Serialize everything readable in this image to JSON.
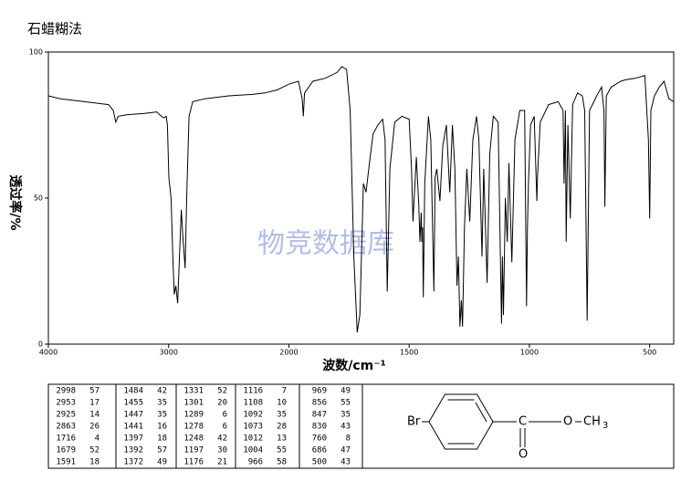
{
  "chart_data": {
    "type": "line",
    "title": "石蜡糊法",
    "ylabel": "透过率/%",
    "xlabel": "波数/cm⁻¹",
    "watermark": "物竞数据库",
    "color": "#000000",
    "xlim": [
      4000,
      400
    ],
    "xscale_break": 2000,
    "xticks": [
      4000,
      3000,
      2000,
      1500,
      1000,
      500
    ],
    "ylim": [
      0,
      100
    ],
    "yticks": [
      0,
      50,
      100
    ],
    "x": [
      4000,
      3900,
      3800,
      3700,
      3600,
      3500,
      3460,
      3440,
      3420,
      3350,
      3200,
      3100,
      3060,
      3040,
      3020,
      3010,
      2998,
      2980,
      2965,
      2953,
      2940,
      2925,
      2910,
      2895,
      2880,
      2863,
      2850,
      2830,
      2800,
      2700,
      2500,
      2300,
      2200,
      2100,
      2050,
      2000,
      1960,
      1945,
      1940,
      1935,
      1900,
      1850,
      1800,
      1780,
      1760,
      1745,
      1730,
      1716,
      1705,
      1690,
      1679,
      1665,
      1650,
      1630,
      1610,
      1600,
      1591,
      1580,
      1560,
      1530,
      1500,
      1490,
      1484,
      1470,
      1460,
      1455,
      1450,
      1447,
      1444,
      1441,
      1435,
      1420,
      1410,
      1397,
      1394,
      1392,
      1385,
      1372,
      1360,
      1345,
      1331,
      1320,
      1310,
      1301,
      1295,
      1289,
      1283,
      1278,
      1270,
      1260,
      1248,
      1235,
      1220,
      1210,
      1197,
      1190,
      1176,
      1165,
      1150,
      1130,
      1116,
      1112,
      1108,
      1100,
      1092,
      1085,
      1073,
      1060,
      1040,
      1020,
      1012,
      1008,
      1004,
      995,
      980,
      969,
      966,
      955,
      920,
      880,
      860,
      856,
      850,
      847,
      840,
      830,
      820,
      800,
      780,
      770,
      760,
      750,
      720,
      700,
      690,
      686,
      680,
      660,
      640,
      620,
      600,
      560,
      520,
      505,
      500,
      495,
      480,
      460,
      440,
      420,
      400
    ],
    "values": [
      85,
      84,
      83.5,
      83,
      82.5,
      82,
      80,
      76,
      78,
      78.5,
      79,
      79.5,
      78,
      77.5,
      78,
      75,
      57,
      50,
      30,
      17,
      20,
      14,
      30,
      46,
      36,
      26,
      50,
      78,
      83,
      84,
      85,
      85.5,
      86,
      87,
      88,
      89,
      90,
      84,
      78,
      86,
      90,
      91,
      93,
      95,
      94,
      80,
      30,
      4,
      10,
      55,
      52,
      62,
      72,
      75,
      77,
      70,
      18,
      60,
      76,
      78,
      77,
      60,
      42,
      64,
      48,
      35,
      45,
      35,
      40,
      16,
      55,
      78,
      70,
      18,
      40,
      57,
      60,
      49,
      68,
      75,
      52,
      75,
      60,
      20,
      30,
      6,
      15,
      6,
      40,
      60,
      42,
      70,
      78,
      70,
      30,
      60,
      21,
      65,
      78,
      76,
      7,
      30,
      10,
      50,
      35,
      62,
      28,
      70,
      80,
      80,
      13,
      40,
      55,
      75,
      78,
      49,
      58,
      76,
      82,
      83,
      80,
      55,
      80,
      35,
      75,
      43,
      82,
      86,
      85,
      80,
      8,
      80,
      85,
      88,
      80,
      47,
      85,
      88,
      89,
      90,
      90.5,
      91,
      92,
      70,
      43,
      80,
      85,
      88,
      90,
      84,
      83
    ],
    "peak_table": [
      [
        [
          "2998",
          "57"
        ],
        [
          "2953",
          "17"
        ],
        [
          "2925",
          "14"
        ],
        [
          "2863",
          "26"
        ],
        [
          "1716",
          "4"
        ],
        [
          "1679",
          "52"
        ],
        [
          "1591",
          "18"
        ]
      ],
      [
        [
          "1484",
          "42"
        ],
        [
          "1455",
          "35"
        ],
        [
          "1447",
          "35"
        ],
        [
          "1441",
          "16"
        ],
        [
          "1397",
          "18"
        ],
        [
          "1392",
          "57"
        ],
        [
          "1372",
          "49"
        ]
      ],
      [
        [
          "1331",
          "52"
        ],
        [
          "1301",
          "20"
        ],
        [
          "1289",
          "6"
        ],
        [
          "1278",
          "6"
        ],
        [
          "1248",
          "42"
        ],
        [
          "1197",
          "30"
        ],
        [
          "1176",
          "21"
        ]
      ],
      [
        [
          "1116",
          "7"
        ],
        [
          "1108",
          "10"
        ],
        [
          "1092",
          "35"
        ],
        [
          "1073",
          "28"
        ],
        [
          "1012",
          "13"
        ],
        [
          "1004",
          "55"
        ],
        [
          "966",
          "58"
        ]
      ],
      [
        [
          "969",
          "49"
        ],
        [
          "856",
          "55"
        ],
        [
          "847",
          "35"
        ],
        [
          "830",
          "43"
        ],
        [
          "760",
          "8"
        ],
        [
          "686",
          "47"
        ],
        [
          "500",
          "43"
        ]
      ]
    ],
    "structure": {
      "br": "Br",
      "c": "C",
      "o_ester": "O",
      "ch": "CH",
      "sub3": "3",
      "o_carbonyl": "O"
    }
  }
}
